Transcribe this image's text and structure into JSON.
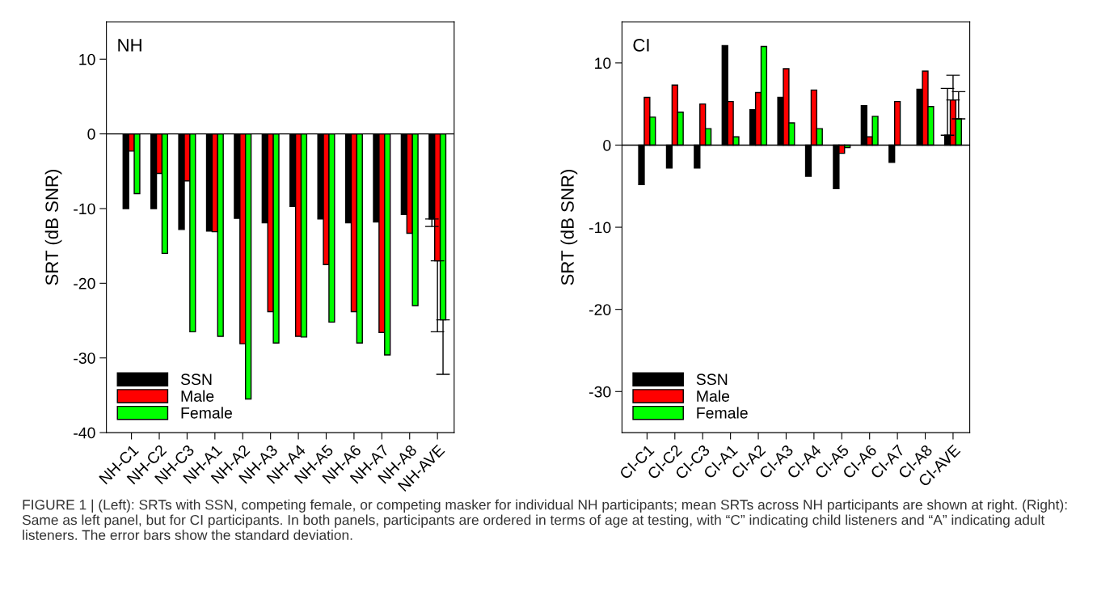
{
  "chart_data": [
    {
      "type": "bar",
      "title": "NH",
      "ylabel": "SRT (dB SNR)",
      "categories": [
        "NH-C1",
        "NH-C2",
        "NH-C3",
        "NH-A1",
        "NH-A2",
        "NH-A3",
        "NH-A4",
        "NH-A5",
        "NH-A6",
        "NH-A7",
        "NH-A8",
        "NH-AVE"
      ],
      "series": [
        {
          "name": "SSN",
          "color": "#000000",
          "values": [
            -10.0,
            -10.0,
            -12.8,
            -13.0,
            -11.3,
            -11.9,
            -9.7,
            -11.4,
            -11.9,
            -11.8,
            -10.8,
            -11.4
          ],
          "errors": [
            null,
            null,
            null,
            null,
            null,
            null,
            null,
            null,
            null,
            null,
            null,
            [
              -12.4,
              -11.4
            ]
          ]
        },
        {
          "name": "Male",
          "color": "#ff0000",
          "values": [
            -2.3,
            -5.3,
            -6.3,
            -13.1,
            -28.1,
            -23.8,
            -27.1,
            -17.5,
            -23.8,
            -26.6,
            -13.3,
            -17.0
          ],
          "errors": [
            null,
            null,
            null,
            null,
            null,
            null,
            null,
            null,
            null,
            null,
            null,
            [
              -26.5,
              -17.0
            ]
          ]
        },
        {
          "name": "Female",
          "color": "#00ff00",
          "values": [
            -8.0,
            -16.0,
            -26.5,
            -27.1,
            -35.5,
            -28.0,
            -27.2,
            -25.2,
            -28.0,
            -29.6,
            -23.0,
            -24.9
          ],
          "errors": [
            null,
            null,
            null,
            null,
            null,
            null,
            null,
            null,
            null,
            null,
            null,
            [
              -32.2,
              -24.9
            ]
          ]
        }
      ],
      "ylim": [
        -40,
        15
      ],
      "yticks": [
        -40,
        -30,
        -20,
        -10,
        0,
        10
      ],
      "ref_lines": [
        {
          "axis": "y",
          "value": 0
        }
      ],
      "legend": "bottom left",
      "grid": false
    },
    {
      "type": "bar",
      "title": "CI",
      "ylabel": "SRT (dB SNR)",
      "categories": [
        "CI-C1",
        "CI-C2",
        "CI-C3",
        "CI-A1",
        "CI-A2",
        "CI-A3",
        "CI-A4",
        "CI-A5",
        "CI-A6",
        "CI-A7",
        "CI-A8",
        "CI-AVE"
      ],
      "series": [
        {
          "name": "SSN",
          "color": "#000000",
          "values": [
            -4.8,
            -2.8,
            -2.8,
            12.1,
            4.3,
            5.8,
            -3.8,
            -5.3,
            4.8,
            -2.1,
            6.8,
            1.2
          ],
          "errors": [
            null,
            null,
            null,
            null,
            null,
            null,
            null,
            null,
            null,
            null,
            null,
            [
              1.2,
              6.9
            ]
          ]
        },
        {
          "name": "Male",
          "color": "#ff0000",
          "values": [
            5.8,
            7.3,
            5.0,
            5.3,
            6.4,
            9.3,
            6.7,
            -1.0,
            1.0,
            5.3,
            9.0,
            5.5
          ],
          "errors": [
            null,
            null,
            null,
            null,
            null,
            null,
            null,
            null,
            null,
            null,
            null,
            [
              5.5,
              8.5
            ]
          ]
        },
        {
          "name": "Female",
          "color": "#00ff00",
          "values": [
            3.4,
            4.0,
            2.0,
            1.0,
            12.0,
            2.7,
            2.0,
            -0.3,
            3.5,
            null,
            4.7,
            3.2
          ],
          "errors": [
            null,
            null,
            null,
            null,
            null,
            null,
            null,
            null,
            null,
            null,
            null,
            [
              3.2,
              6.5
            ]
          ]
        }
      ],
      "ylim": [
        -35,
        15
      ],
      "yticks": [
        -30,
        -20,
        -10,
        0,
        10
      ],
      "ref_lines": [
        {
          "axis": "y",
          "value": 0
        }
      ],
      "legend": "bottom left",
      "grid": false,
      "annotations": [
        "FIGURE 1 | (Left): SRTs with SSN, competing female, or competing masker for individual NH participants; mean SRTs across NH participants are shown at right. (Right): Same as left panel, but for CI participants. In both panels, participants are ordered in terms of age at testing, with “C” indicating child listeners and “A” indicating adult listeners. The error bars show the standard deviation."
      ]
    }
  ]
}
